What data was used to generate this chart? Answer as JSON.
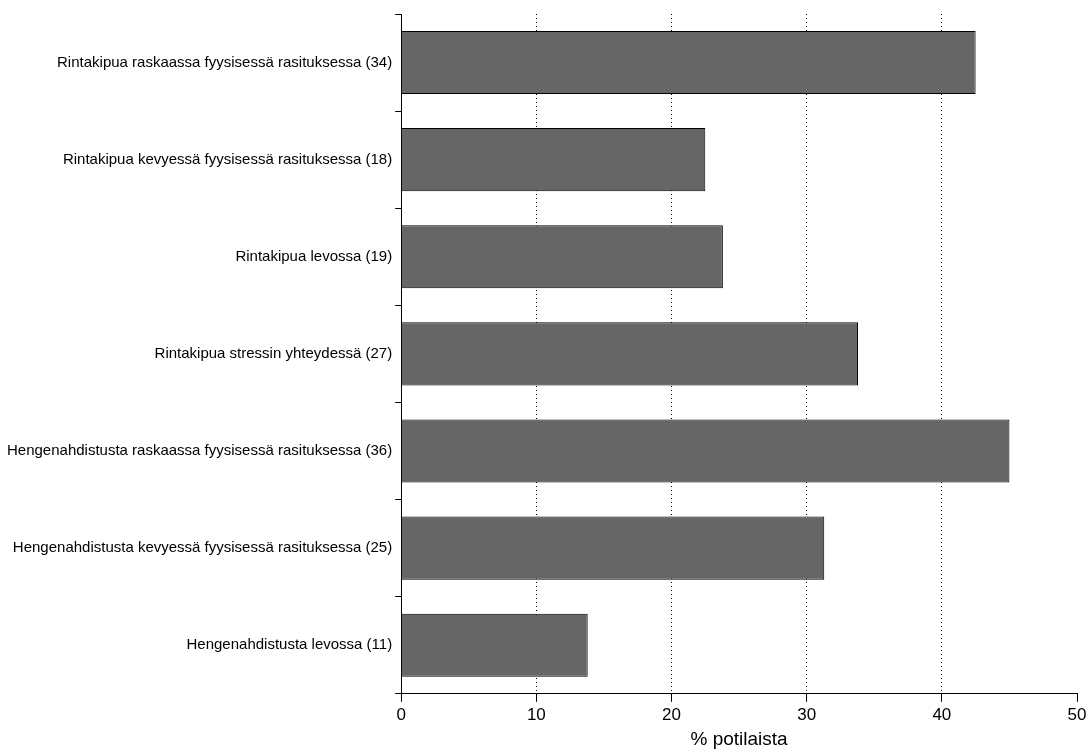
{
  "chart_data": {
    "type": "bar",
    "orientation": "horizontal",
    "xlabel": "% potilaista",
    "categories": [
      "Rintakipua raskaassa fyysisessä rasituksessa (34)",
      "Rintakipua kevyessä fyysisessä rasituksessa (18)",
      "Rintakipua levossa (19)",
      "Rintakipua stressin yhteydessä (27)",
      "Hengenahdistusta raskaassa fyysisessä rasituksessa (36)",
      "Hengenahdistusta kevyessä fyysisessä rasituksessa (25)",
      "Hengenahdistusta levossa (11)"
    ],
    "values": [
      42.5,
      22.5,
      23.8,
      33.8,
      45,
      31.3,
      13.8
    ],
    "color": "#666666",
    "xlim": [
      0,
      50
    ],
    "xticks": [
      0,
      10,
      20,
      30,
      40,
      50
    ],
    "grid": "x",
    "legend": false
  }
}
